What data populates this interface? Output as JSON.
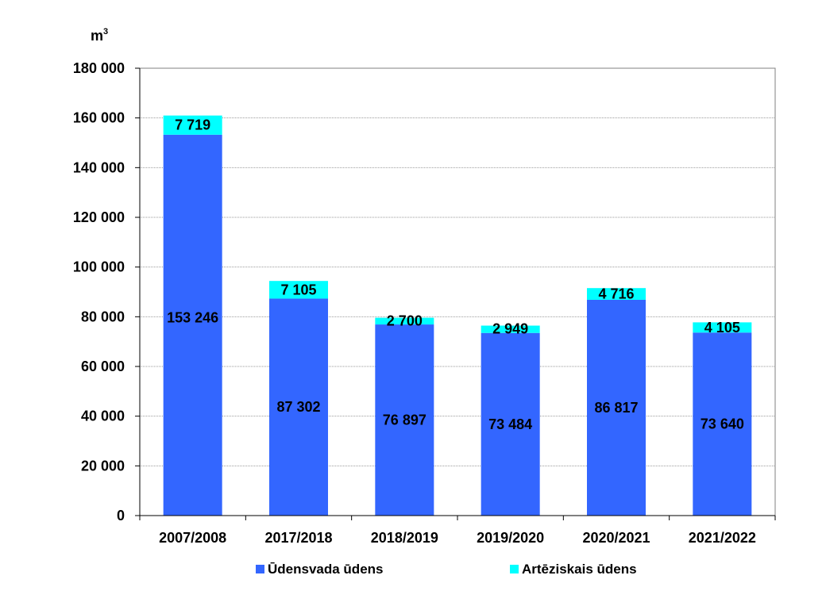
{
  "chart_data": {
    "type": "bar",
    "stacked": true,
    "unit_label": "m",
    "unit_superscript": "3",
    "categories": [
      "2007/2008",
      "2017/2018",
      "2018/2019",
      "2019/2020",
      "2020/2021",
      "2021/2022"
    ],
    "series": [
      {
        "name": "Ūdensvada ūdens",
        "color": "#3366FF",
        "values": [
          153246,
          87302,
          76897,
          73484,
          86817,
          73640
        ],
        "labels": [
          "153 246",
          "87 302",
          "76 897",
          "73 484",
          "86 817",
          "73 640"
        ]
      },
      {
        "name": "Artēziskais ūdens",
        "color": "#00FFFF",
        "values": [
          7719,
          7105,
          2700,
          2949,
          4716,
          4105
        ],
        "labels": [
          "7 719",
          "7 105",
          "2 700",
          "2 949",
          "4 716",
          "4 105"
        ]
      }
    ],
    "ylim": [
      0,
      180000
    ],
    "yticks": [
      0,
      20000,
      40000,
      60000,
      80000,
      100000,
      120000,
      140000,
      160000,
      180000
    ],
    "ytick_labels": [
      "0",
      "20 000",
      "40 000",
      "60 000",
      "80 000",
      "100 000",
      "120 000",
      "140 000",
      "160 000",
      "180 000"
    ],
    "grid": true,
    "legend_position": "bottom"
  }
}
